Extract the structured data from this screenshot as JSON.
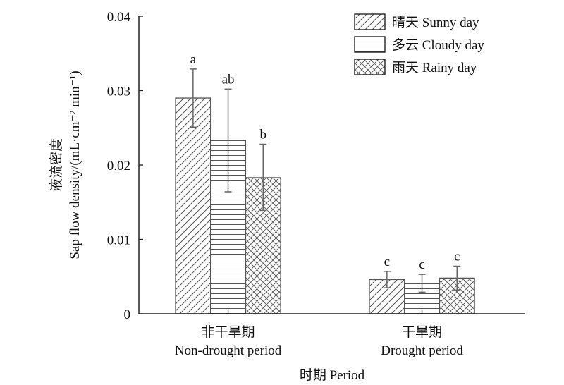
{
  "chart_data": {
    "type": "bar",
    "xlabel": "时期 Period",
    "ylabel_cn": "液流密度",
    "ylabel": "Sap flow density/(mL·cm⁻² min⁻¹)",
    "ylim": [
      0,
      0.04
    ],
    "yticks": [
      "0",
      "0.01",
      "0.02",
      "0.03",
      "0.04"
    ],
    "ytick_values": [
      0,
      0.01,
      0.02,
      0.03,
      0.04
    ],
    "categories": [
      {
        "cn": "非干旱期",
        "en": "Non-drought period"
      },
      {
        "cn": "干旱期",
        "en": "Drought period"
      }
    ],
    "legend_position": "top-right",
    "series": [
      {
        "name": "晴天 Sunny day",
        "pattern": "diagonal",
        "values": [
          0.029,
          0.0046
        ],
        "err_high": [
          0.0329,
          0.0057
        ],
        "err_low": [
          0.0251,
          0.0035
        ],
        "letters": [
          "a",
          "c"
        ]
      },
      {
        "name": "多云 Cloudy day",
        "pattern": "horizontal",
        "values": [
          0.0233,
          0.0041
        ],
        "err_high": [
          0.0302,
          0.0053
        ],
        "err_low": [
          0.0164,
          0.0029
        ],
        "letters": [
          "ab",
          "c"
        ]
      },
      {
        "name": "雨天 Rainy day",
        "pattern": "crosshatch",
        "values": [
          0.0183,
          0.0048
        ],
        "err_high": [
          0.0228,
          0.0064
        ],
        "err_low": [
          0.0139,
          0.0032
        ],
        "letters": [
          "b",
          "c"
        ]
      }
    ]
  }
}
